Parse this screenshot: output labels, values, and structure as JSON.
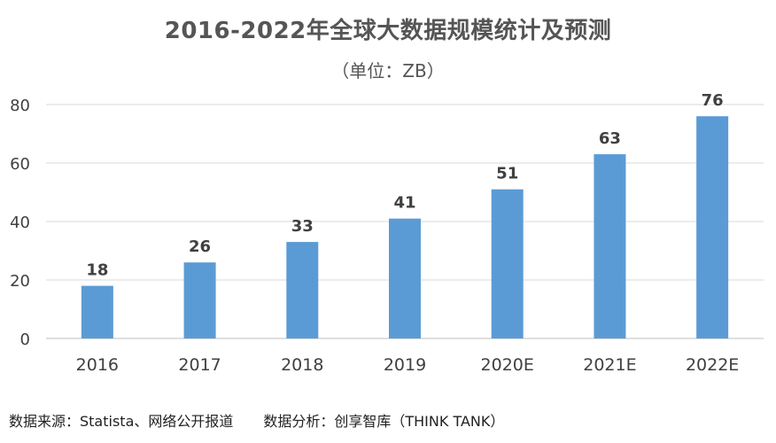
{
  "chart_data": {
    "type": "bar",
    "title": "2016-2022年全球大数据规模统计及预测",
    "subtitle": "（单位：ZB）",
    "categories": [
      "2016",
      "2017",
      "2018",
      "2019",
      "2020E",
      "2021E",
      "2022E"
    ],
    "values": [
      18,
      26,
      33,
      41,
      51,
      63,
      76
    ],
    "y_ticks": [
      "0",
      "20",
      "40",
      "60",
      "80"
    ],
    "ylim": [
      0,
      80
    ],
    "grid": true,
    "legend": "none",
    "bar_color": "#5B9BD5",
    "grid_color": "#D9D9D9"
  },
  "footer": {
    "source": "数据来源：Statista、网络公开报道",
    "analysis": "数据分析：创享智库（THINK  TANK）"
  }
}
